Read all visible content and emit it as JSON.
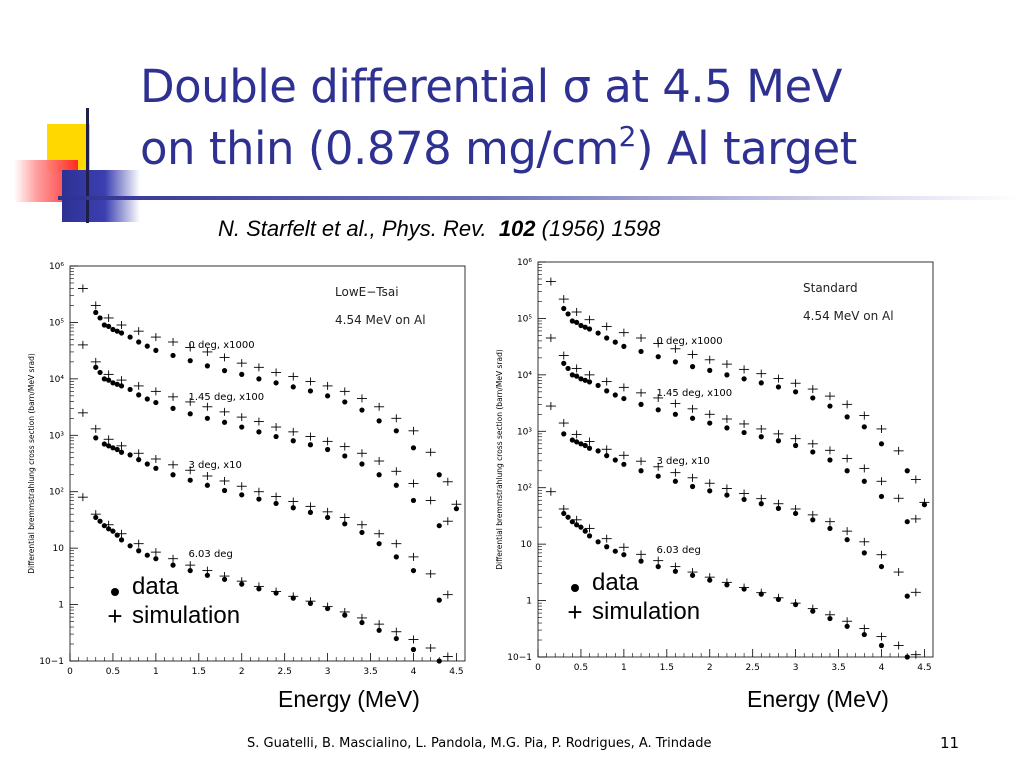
{
  "slide": {
    "title_line1": "Double differential σ at 4.5 MeV",
    "title_line2_a": "on thin (0.878 mg/cm",
    "title_line2_sup": "2",
    "title_line2_b": ") Al target",
    "citation_authors": "N. Starfelt et al., Phys. Rev.",
    "citation_volume": "102",
    "citation_rest": "(1956) 1598",
    "footer": "S. Guatelli, B. Mascialino, L. Pandola, M.G. Pia, P. Rodrigues, A. Trindade",
    "page_number": "11",
    "accent_color": "#2e3192"
  },
  "chart_data": [
    {
      "type": "scatter",
      "title": "LowE−Tsai",
      "subtitle": "4.54 MeV on Al",
      "xlabel": "Energy (MeV)",
      "ylabel": "Differential bremmstrahlung cross section (barn/MeV srad)",
      "yscale": "log",
      "xlim": [
        0,
        4.6
      ],
      "ylim": [
        0.1,
        1000000
      ],
      "xticks": [
        "0",
        "0.5",
        "1",
        "1.5",
        "2",
        "2.5",
        "3",
        "3.5",
        "4",
        "4.5"
      ],
      "yticks": [
        "10−1",
        "1",
        "10",
        "10²",
        "10³",
        "10⁴",
        "10⁵",
        "10⁶"
      ],
      "legend": [
        {
          "marker": "dot",
          "label": "data"
        },
        {
          "marker": "plus",
          "label": "simulation"
        }
      ],
      "series": [
        {
          "annotation": "0 deg, x1000",
          "data_x": [
            0.3,
            0.35,
            0.4,
            0.45,
            0.5,
            0.55,
            0.6,
            0.7,
            0.8,
            0.9,
            1.0,
            1.2,
            1.4,
            1.6,
            1.8,
            2.0,
            2.2,
            2.4,
            2.6,
            2.8,
            3.0,
            3.2,
            3.4,
            3.6,
            3.8,
            4.0,
            4.3,
            4.5
          ],
          "data_y": [
            150000,
            120000,
            90000,
            85000,
            75000,
            70000,
            65000,
            55000,
            45000,
            38000,
            32000,
            26000,
            21000,
            17000,
            14000,
            12000,
            10000,
            8500,
            7200,
            6100,
            5000,
            3900,
            2800,
            1800,
            1200,
            600,
            200,
            50
          ],
          "sim_x": [
            0.15,
            0.3,
            0.45,
            0.6,
            0.8,
            1.0,
            1.2,
            1.4,
            1.6,
            1.8,
            2.0,
            2.2,
            2.4,
            2.6,
            2.8,
            3.0,
            3.2,
            3.4,
            3.6,
            3.8,
            4.0,
            4.2,
            4.4,
            4.5
          ],
          "sim_y": [
            400000,
            200000,
            120000,
            90000,
            70000,
            55000,
            45000,
            36000,
            30000,
            24000,
            19000,
            16000,
            13000,
            11000,
            9000,
            7500,
            6000,
            4500,
            3200,
            2000,
            1200,
            500,
            150,
            60
          ]
        },
        {
          "annotation": "1.45 deg, x100",
          "data_x": [
            0.3,
            0.35,
            0.4,
            0.45,
            0.5,
            0.55,
            0.6,
            0.7,
            0.8,
            0.9,
            1.0,
            1.2,
            1.4,
            1.6,
            1.8,
            2.0,
            2.2,
            2.4,
            2.6,
            2.8,
            3.0,
            3.2,
            3.4,
            3.6,
            3.8,
            4.0,
            4.3
          ],
          "data_y": [
            16000,
            13000,
            10000,
            9500,
            8500,
            8000,
            7500,
            6500,
            5200,
            4400,
            3800,
            3000,
            2400,
            2000,
            1700,
            1400,
            1150,
            950,
            800,
            680,
            560,
            430,
            310,
            200,
            130,
            70,
            25
          ],
          "sim_x": [
            0.15,
            0.3,
            0.45,
            0.6,
            0.8,
            1.0,
            1.2,
            1.4,
            1.6,
            1.8,
            2.0,
            2.2,
            2.4,
            2.6,
            2.8,
            3.0,
            3.2,
            3.4,
            3.6,
            3.8,
            4.0,
            4.2,
            4.4
          ],
          "sim_y": [
            40000,
            20000,
            12000,
            9500,
            7500,
            6000,
            4800,
            3900,
            3200,
            2600,
            2100,
            1750,
            1400,
            1150,
            950,
            780,
            630,
            480,
            350,
            230,
            140,
            70,
            30
          ]
        },
        {
          "annotation": "3 deg, x10",
          "data_x": [
            0.3,
            0.4,
            0.45,
            0.5,
            0.55,
            0.6,
            0.7,
            0.8,
            0.9,
            1.0,
            1.2,
            1.4,
            1.6,
            1.8,
            2.0,
            2.2,
            2.4,
            2.6,
            2.8,
            3.0,
            3.2,
            3.4,
            3.6,
            3.8,
            4.0,
            4.3
          ],
          "data_y": [
            900,
            700,
            650,
            600,
            560,
            500,
            450,
            370,
            310,
            260,
            200,
            160,
            130,
            105,
            88,
            74,
            62,
            52,
            43,
            35,
            27,
            19,
            12,
            7,
            4,
            1.2
          ],
          "sim_x": [
            0.15,
            0.3,
            0.45,
            0.6,
            0.8,
            1.0,
            1.2,
            1.4,
            1.6,
            1.8,
            2.0,
            2.2,
            2.4,
            2.6,
            2.8,
            3.0,
            3.2,
            3.4,
            3.6,
            3.8,
            4.0,
            4.2,
            4.4
          ],
          "sim_y": [
            2500,
            1300,
            850,
            650,
            480,
            380,
            300,
            240,
            190,
            155,
            125,
            100,
            82,
            67,
            55,
            44,
            35,
            26,
            18,
            12,
            7,
            3.5,
            1.5
          ]
        },
        {
          "annotation": "6.03 deg",
          "data_x": [
            0.3,
            0.35,
            0.4,
            0.45,
            0.5,
            0.55,
            0.6,
            0.7,
            0.8,
            0.9,
            1.0,
            1.2,
            1.4,
            1.6,
            1.8,
            2.0,
            2.2,
            2.4,
            2.6,
            2.8,
            3.0,
            3.2,
            3.4,
            3.6,
            3.8,
            4.0,
            4.3
          ],
          "data_y": [
            35,
            30,
            25,
            22,
            20,
            17,
            14,
            11,
            9,
            7.5,
            6.5,
            5,
            4,
            3.3,
            2.8,
            2.3,
            1.9,
            1.6,
            1.3,
            1.05,
            0.85,
            0.65,
            0.48,
            0.35,
            0.25,
            0.16,
            0.1
          ],
          "sim_x": [
            0.15,
            0.3,
            0.45,
            0.6,
            0.8,
            1.0,
            1.2,
            1.4,
            1.6,
            1.8,
            2.0,
            2.2,
            2.4,
            2.6,
            2.8,
            3.0,
            3.2,
            3.4,
            3.6,
            3.8,
            4.0,
            4.2,
            4.4
          ],
          "sim_y": [
            80,
            40,
            26,
            18,
            12,
            8.5,
            6.5,
            5,
            4,
            3.2,
            2.6,
            2.1,
            1.7,
            1.4,
            1.15,
            0.92,
            0.74,
            0.58,
            0.45,
            0.33,
            0.24,
            0.17,
            0.12
          ]
        }
      ]
    },
    {
      "type": "scatter",
      "title": "Standard",
      "subtitle": "4.54 MeV on Al",
      "xlabel": "Energy (MeV)",
      "ylabel": "Differential bremmstrahlung cross section (barn/MeV srad)",
      "yscale": "log",
      "xlim": [
        0,
        4.6
      ],
      "ylim": [
        0.1,
        1000000
      ],
      "xticks": [
        "0",
        "0.5",
        "1",
        "1.5",
        "2",
        "2.5",
        "3",
        "3.5",
        "4",
        "4.5"
      ],
      "yticks": [
        "10−1",
        "1",
        "10",
        "10²",
        "10³",
        "10⁴",
        "10⁵",
        "10⁶"
      ],
      "legend": [
        {
          "marker": "dot",
          "label": "data"
        },
        {
          "marker": "plus",
          "label": "simulation"
        }
      ],
      "series": [
        {
          "annotation": "0 deg, x1000",
          "data_x": [
            0.3,
            0.35,
            0.4,
            0.45,
            0.5,
            0.55,
            0.6,
            0.7,
            0.8,
            0.9,
            1.0,
            1.2,
            1.4,
            1.6,
            1.8,
            2.0,
            2.2,
            2.4,
            2.6,
            2.8,
            3.0,
            3.2,
            3.4,
            3.6,
            3.8,
            4.0,
            4.3,
            4.5
          ],
          "data_y": [
            150000,
            120000,
            90000,
            85000,
            75000,
            70000,
            65000,
            55000,
            45000,
            38000,
            32000,
            26000,
            21000,
            17000,
            14000,
            12000,
            10000,
            8500,
            7200,
            6100,
            5000,
            3900,
            2800,
            1800,
            1200,
            600,
            200,
            50
          ],
          "sim_x": [
            0.15,
            0.3,
            0.45,
            0.6,
            0.8,
            1.0,
            1.2,
            1.4,
            1.6,
            1.8,
            2.0,
            2.2,
            2.4,
            2.6,
            2.8,
            3.0,
            3.2,
            3.4,
            3.6,
            3.8,
            4.0,
            4.2,
            4.4,
            4.5
          ],
          "sim_y": [
            450000,
            220000,
            130000,
            95000,
            72000,
            56000,
            45000,
            36000,
            29000,
            23000,
            18500,
            15500,
            12500,
            10500,
            8600,
            7100,
            5600,
            4200,
            3000,
            1900,
            1100,
            450,
            140,
            55
          ]
        },
        {
          "annotation": "1.45 deg, x100",
          "data_x": [
            0.3,
            0.35,
            0.4,
            0.45,
            0.5,
            0.55,
            0.6,
            0.7,
            0.8,
            0.9,
            1.0,
            1.2,
            1.4,
            1.6,
            1.8,
            2.0,
            2.2,
            2.4,
            2.6,
            2.8,
            3.0,
            3.2,
            3.4,
            3.6,
            3.8,
            4.0,
            4.3
          ],
          "data_y": [
            16000,
            13000,
            10000,
            9500,
            8500,
            8000,
            7500,
            6500,
            5200,
            4400,
            3800,
            3000,
            2400,
            2000,
            1700,
            1400,
            1150,
            950,
            800,
            680,
            560,
            430,
            310,
            200,
            130,
            70,
            25
          ],
          "sim_x": [
            0.15,
            0.3,
            0.45,
            0.6,
            0.8,
            1.0,
            1.2,
            1.4,
            1.6,
            1.8,
            2.0,
            2.2,
            2.4,
            2.6,
            2.8,
            3.0,
            3.2,
            3.4,
            3.6,
            3.8,
            4.0,
            4.2,
            4.4
          ],
          "sim_y": [
            45000,
            22000,
            13000,
            10000,
            7600,
            6000,
            4800,
            3900,
            3100,
            2500,
            2000,
            1650,
            1350,
            1100,
            900,
            740,
            600,
            460,
            330,
            220,
            130,
            65,
            28
          ]
        },
        {
          "annotation": "3 deg, x10",
          "data_x": [
            0.3,
            0.4,
            0.45,
            0.5,
            0.55,
            0.6,
            0.7,
            0.8,
            0.9,
            1.0,
            1.2,
            1.4,
            1.6,
            1.8,
            2.0,
            2.2,
            2.4,
            2.6,
            2.8,
            3.0,
            3.2,
            3.4,
            3.6,
            3.8,
            4.0,
            4.3
          ],
          "data_y": [
            900,
            700,
            650,
            600,
            560,
            500,
            450,
            370,
            310,
            260,
            200,
            160,
            130,
            105,
            88,
            74,
            62,
            52,
            43,
            35,
            27,
            19,
            12,
            7,
            4,
            1.2
          ],
          "sim_x": [
            0.15,
            0.3,
            0.45,
            0.6,
            0.8,
            1.0,
            1.2,
            1.4,
            1.6,
            1.8,
            2.0,
            2.2,
            2.4,
            2.6,
            2.8,
            3.0,
            3.2,
            3.4,
            3.6,
            3.8,
            4.0,
            4.2,
            4.4
          ],
          "sim_y": [
            2800,
            1400,
            880,
            660,
            480,
            375,
            295,
            235,
            185,
            150,
            120,
            97,
            79,
            64,
            52,
            42,
            33,
            25,
            17,
            11,
            6.5,
            3.2,
            1.4
          ]
        },
        {
          "annotation": "6.03 deg",
          "data_x": [
            0.3,
            0.35,
            0.4,
            0.45,
            0.5,
            0.55,
            0.6,
            0.7,
            0.8,
            0.9,
            1.0,
            1.2,
            1.4,
            1.6,
            1.8,
            2.0,
            2.2,
            2.4,
            2.6,
            2.8,
            3.0,
            3.2,
            3.4,
            3.6,
            3.8,
            4.0,
            4.3
          ],
          "data_y": [
            35,
            30,
            25,
            22,
            20,
            17,
            14,
            11,
            9,
            7.5,
            6.5,
            5,
            4,
            3.3,
            2.8,
            2.3,
            1.9,
            1.6,
            1.3,
            1.05,
            0.85,
            0.65,
            0.48,
            0.35,
            0.25,
            0.16,
            0.1
          ],
          "sim_x": [
            0.15,
            0.3,
            0.45,
            0.6,
            0.8,
            1.0,
            1.2,
            1.4,
            1.6,
            1.8,
            2.0,
            2.2,
            2.4,
            2.6,
            2.8,
            3.0,
            3.2,
            3.4,
            3.6,
            3.8,
            4.0,
            4.2,
            4.4
          ],
          "sim_y": [
            85,
            42,
            27,
            19,
            12.5,
            8.8,
            6.6,
            5.1,
            4,
            3.2,
            2.6,
            2.1,
            1.7,
            1.38,
            1.12,
            0.9,
            0.72,
            0.56,
            0.43,
            0.32,
            0.23,
            0.16,
            0.11
          ]
        }
      ]
    }
  ]
}
